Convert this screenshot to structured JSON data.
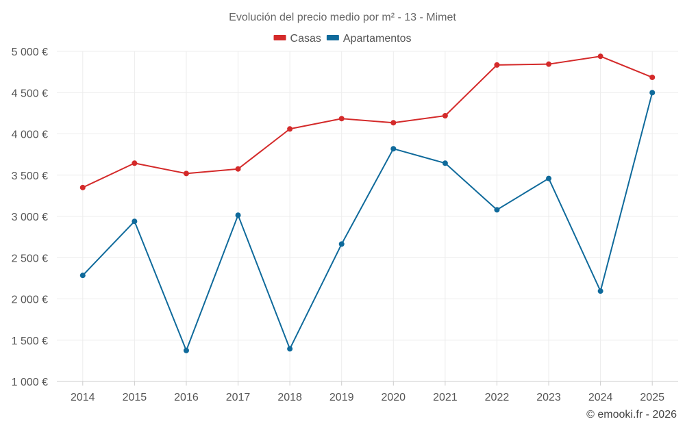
{
  "chart_data": {
    "type": "line",
    "title": "Evolución del precio medio por m² - 13 - Mimet",
    "categories": [
      "2014",
      "2015",
      "2016",
      "2017",
      "2018",
      "2019",
      "2020",
      "2021",
      "2022",
      "2023",
      "2024",
      "2025"
    ],
    "series": [
      {
        "name": "Casas",
        "color": "#d42a2a",
        "values": [
          3350,
          3645,
          3520,
          3575,
          4060,
          4185,
          4135,
          4220,
          4835,
          4845,
          4940,
          4685
        ]
      },
      {
        "name": "Apartamentos",
        "color": "#0f6a9b",
        "values": [
          2285,
          2940,
          1375,
          3015,
          1395,
          2665,
          3820,
          3645,
          3080,
          3460,
          2095,
          4500
        ]
      }
    ],
    "ylim": [
      1000,
      5000
    ],
    "yticks": [
      1000,
      1500,
      2000,
      2500,
      3000,
      3500,
      4000,
      4500,
      5000
    ],
    "ytick_labels": [
      "1 000 €",
      "1 500 €",
      "2 000 €",
      "2 500 €",
      "3 000 €",
      "3 500 €",
      "4 000 €",
      "4 500 €",
      "5 000 €"
    ],
    "grid": true,
    "legend": "top-center"
  },
  "credit": "© emooki.fr - 2026"
}
